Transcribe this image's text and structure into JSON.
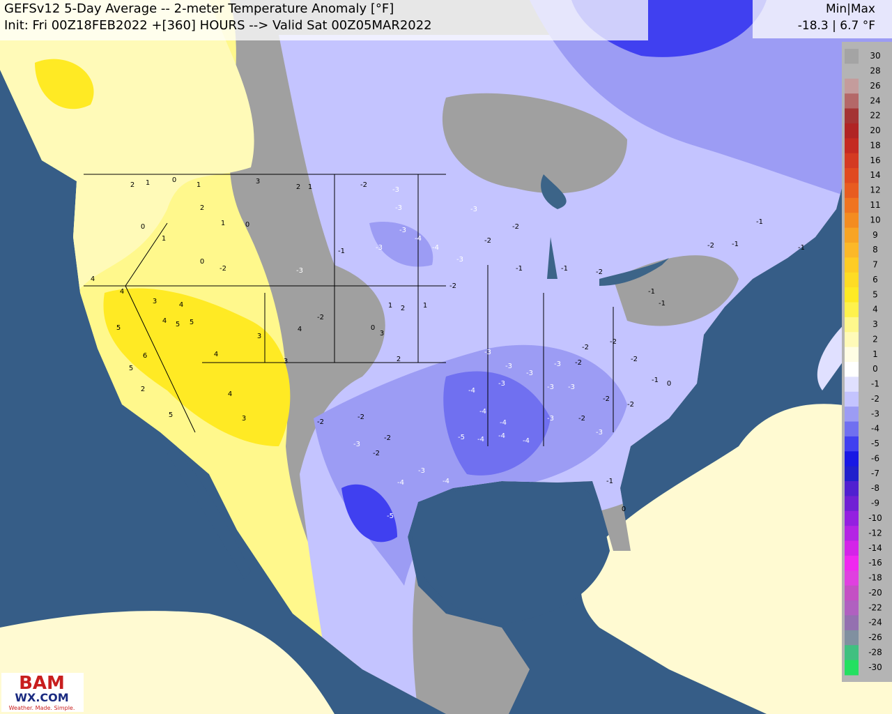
{
  "header": {
    "title": "GEFSv12 5-Day Average -- 2-meter Temperature Anomaly [°F]",
    "subtitle": "Init: Fri 00Z18FEB2022 +[360] HOURS --> Valid Sat 00Z05MAR2022",
    "minmax_label": "Min|Max",
    "minmax_values": "-18.3 | 6.7 °F"
  },
  "colorbar": {
    "levels": [
      30,
      28,
      26,
      24,
      22,
      20,
      18,
      16,
      14,
      12,
      11,
      10,
      9,
      8,
      7,
      6,
      5,
      4,
      3,
      2,
      1,
      0,
      -1,
      -2,
      -3,
      -4,
      -5,
      -6,
      -7,
      -8,
      -9,
      -10,
      -12,
      -14,
      -16,
      -18,
      -20,
      -22,
      -24,
      -26,
      -28,
      -30
    ],
    "colors": [
      "#a4a4a4",
      "#b4b4b4",
      "#c49c9c",
      "#b46868",
      "#a43434",
      "#b02424",
      "#c42a22",
      "#d43a22",
      "#e04a20",
      "#e85c20",
      "#f07420",
      "#f48c20",
      "#f8a424",
      "#fcb828",
      "#ffcc24",
      "#ffdc24",
      "#ffea24",
      "#fff24c",
      "#fff88c",
      "#fffab8",
      "#fffde4",
      "#ffffff",
      "#e0e0ff",
      "#c4c4ff",
      "#9c9cf4",
      "#7070f0",
      "#4040f0",
      "#1818e4",
      "#2020cc",
      "#5020d0",
      "#7020d4",
      "#9420e0",
      "#b424e4",
      "#d424e8",
      "#f028f0",
      "#e040e0",
      "#c450c4",
      "#b060c0",
      "#9470b0",
      "#8090a0",
      "#40c080",
      "#24e060"
    ]
  },
  "map_labels": [
    2,
    1,
    0,
    1,
    3,
    2,
    1,
    2,
    1,
    0,
    0,
    1,
    0,
    -2,
    4,
    4,
    3,
    4,
    4,
    5,
    5,
    5,
    6,
    5,
    2,
    5,
    4,
    3,
    4,
    3,
    3,
    4,
    -2,
    -3,
    -3,
    -3,
    -4,
    -4,
    -3,
    -3,
    -1,
    1,
    2,
    1,
    -2,
    0,
    3,
    2,
    -2,
    -2,
    -3,
    -2,
    -2,
    -4,
    -3,
    -5,
    -4,
    -5,
    -4,
    -4,
    -4,
    -3,
    -4,
    -3,
    -4,
    -4,
    -3,
    -3,
    -3,
    -2,
    -3,
    -2,
    -2,
    -3,
    -3,
    -3,
    -2,
    -2,
    -2,
    -2,
    -2,
    -2,
    -2,
    -1,
    -1,
    -2,
    -1,
    -1,
    -2,
    -1,
    -1,
    -1,
    -1,
    0,
    -1,
    0,
    -3,
    -3
  ],
  "logo": {
    "brand": "BAM",
    "site": "WX.COM",
    "tagline": "Weather. Made. Simple."
  }
}
